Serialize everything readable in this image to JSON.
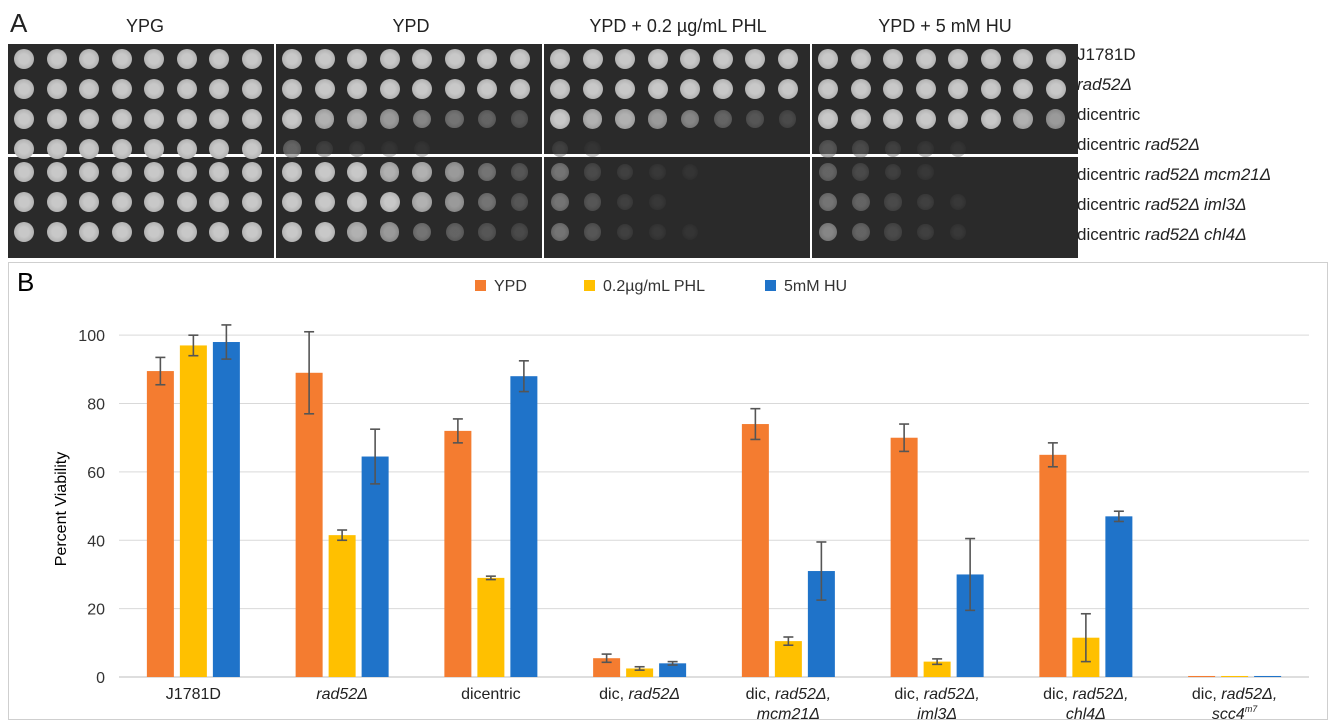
{
  "panel_a": {
    "letter": "A",
    "plate_titles": [
      "YPG",
      "YPD",
      "YPD + 0.2 µg/mL PHL",
      "YPD + 5 mM HU"
    ],
    "strains": [
      {
        "prefix": "",
        "italic": "",
        "plain": "J1781D"
      },
      {
        "prefix": "",
        "italic": "rad52Δ",
        "plain": ""
      },
      {
        "prefix": "",
        "italic": "",
        "plain": "dicentric"
      },
      {
        "prefix": "dicentric ",
        "italic": "rad52Δ",
        "plain": ""
      },
      {
        "prefix": "dicentric ",
        "italic": "rad52Δ mcm21Δ",
        "plain": ""
      },
      {
        "prefix": "dicentric ",
        "italic": "rad52Δ iml3Δ",
        "plain": ""
      },
      {
        "prefix": "dicentric ",
        "italic": "rad52Δ chl4Δ",
        "plain": ""
      }
    ]
  },
  "panel_b": {
    "letter": "B"
  },
  "chart_data": {
    "type": "bar",
    "title": "",
    "xlabel": "",
    "ylabel": "Percent Viability",
    "ylim": [
      0,
      110
    ],
    "yticks": [
      0,
      20,
      40,
      60,
      80,
      100
    ],
    "grid": true,
    "legend_position": "top-center",
    "categories": [
      {
        "line1_plain": "J1781D",
        "line1_italic": "",
        "line2": "",
        "sup": ""
      },
      {
        "line1_plain": "",
        "line1_italic": "rad52Δ",
        "line2": "",
        "sup": ""
      },
      {
        "line1_plain": "dicentric",
        "line1_italic": "",
        "line2": "",
        "sup": ""
      },
      {
        "line1_plain": "dic, ",
        "line1_italic": "rad52Δ",
        "line2": "",
        "sup": ""
      },
      {
        "line1_plain": "dic, ",
        "line1_italic": "rad52Δ,",
        "line2": "mcm21Δ",
        "sup": ""
      },
      {
        "line1_plain": "dic, ",
        "line1_italic": "rad52Δ,",
        "line2": "iml3Δ",
        "sup": ""
      },
      {
        "line1_plain": "dic, ",
        "line1_italic": "rad52Δ,",
        "line2": "chl4Δ",
        "sup": ""
      },
      {
        "line1_plain": "dic, ",
        "line1_italic": "rad52Δ,",
        "line2": "scc4",
        "sup": "m7"
      }
    ],
    "series": [
      {
        "name": "YPD",
        "color": "#f47c30",
        "values": [
          89.5,
          89,
          72,
          5.5,
          74,
          70,
          65,
          0.3
        ],
        "errors": [
          4,
          12,
          3.5,
          1.2,
          4.5,
          4,
          3.5,
          0
        ]
      },
      {
        "name": "0.2µg/mL PHL",
        "color": "#ffc000",
        "values": [
          97,
          41.5,
          29,
          2.5,
          10.5,
          4.5,
          11.5,
          0.3
        ],
        "errors": [
          3,
          1.5,
          0.5,
          0.5,
          1.2,
          0.8,
          7,
          0
        ]
      },
      {
        "name": "5mM HU",
        "color": "#1f73c9",
        "values": [
          98,
          64.5,
          88,
          4,
          31,
          30,
          47,
          0.3
        ],
        "errors": [
          5,
          8,
          4.5,
          0.5,
          8.5,
          10.5,
          1.5,
          0
        ]
      }
    ]
  }
}
